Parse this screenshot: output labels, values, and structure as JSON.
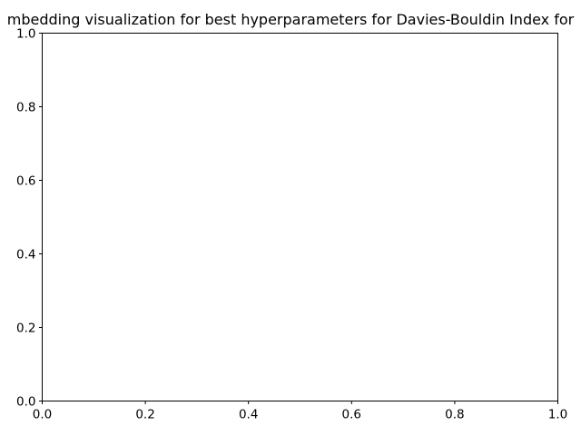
{
  "chart_data": {
    "type": "scatter",
    "title": "mbedding visualization for best hyperparameters for Davies-Bouldin Index for",
    "xlabel": "",
    "ylabel": "",
    "xlim": [
      0,
      1
    ],
    "ylim": [
      0,
      1
    ],
    "x_ticks": [
      "0.0",
      "0.2",
      "0.4",
      "0.6",
      "0.8",
      "1.0"
    ],
    "y_ticks": [
      "0.0",
      "0.2",
      "0.4",
      "0.6",
      "0.8",
      "1.0"
    ],
    "series": [],
    "grid": false
  }
}
